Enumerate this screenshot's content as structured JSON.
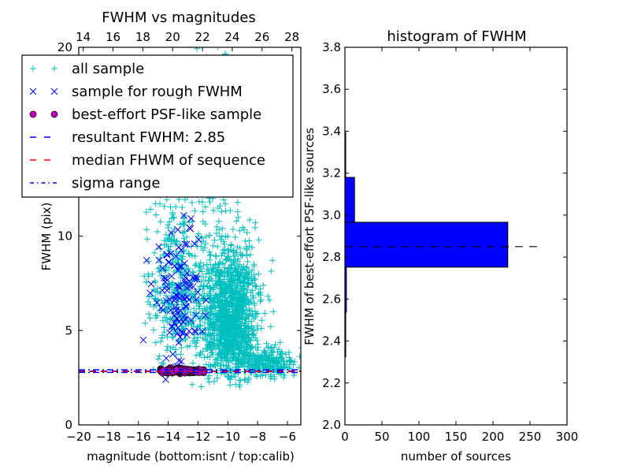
{
  "chart_data": [
    {
      "type": "scatter",
      "title": "FWHM vs magnitudes",
      "xlabel": "magnitude (bottom:isnt / top:calib)",
      "ylabel": "FWHM (pix)",
      "xlim": [
        -20,
        -5.1
      ],
      "ylim": [
        0,
        20
      ],
      "xticks": [
        -20,
        -18,
        -16,
        -14,
        -12,
        -10,
        -8,
        -6
      ],
      "xtick_labels": [
        "−20",
        "−18",
        "−16",
        "−14",
        "−12",
        "−10",
        "−8",
        "−6"
      ],
      "yticks": [
        0,
        5,
        10,
        20
      ],
      "ytick_labels": [
        "0",
        "5",
        "10",
        "20"
      ],
      "top_xticks": [
        14,
        16,
        18,
        20,
        22,
        24,
        26,
        28
      ],
      "top_xtick_labels": [
        "14",
        "16",
        "18",
        "20",
        "22",
        "24",
        "26",
        "28"
      ],
      "top_axis_offset": 33.7,
      "legend_location": "upper-left",
      "legend": [
        {
          "label": "all sample",
          "marker": "plus",
          "color": "#00bfbf"
        },
        {
          "label": "sample for rough FWHM",
          "marker": "x",
          "color": "#0000ff"
        },
        {
          "label": "best-effort PSF-like sample",
          "marker": "circle",
          "color": "#bf00bf"
        },
        {
          "label": "resultant FWHM: 2.85",
          "marker": "dashed",
          "color": "#0000ff"
        },
        {
          "label": "median FHWM of sequence",
          "marker": "dashed",
          "color": "#ff0000"
        },
        {
          "label": "sigma range",
          "marker": "dashdot",
          "color": "#0000ff"
        }
      ],
      "series": [
        {
          "name": "all sample",
          "color": "#00bfbf",
          "clusters": [
            {
              "count": 1300,
              "x_mean": -9.8,
              "x_sd": 0.9,
              "y_mean": 5.2,
              "y_sd": 2.2,
              "y_min": 2.0
            },
            {
              "count": 420,
              "x_mean": -13.3,
              "x_sd": 1.0,
              "y_mean": 6.5,
              "y_sd": 3.0,
              "y_min": 2.6
            },
            {
              "count": 260,
              "x_mean": -7.5,
              "x_sd": 1.2,
              "y_mean": 3.1,
              "y_sd": 0.5,
              "y_min": 2.3
            },
            {
              "count": 120,
              "x_mean": -11.5,
              "x_sd": 1.5,
              "y_mean": 14,
              "y_sd": 3.5,
              "y_min": 9
            }
          ]
        },
        {
          "name": "sample for rough FWHM",
          "color": "#0000ff",
          "clusters": [
            {
              "count": 110,
              "x_mean": -13.3,
              "x_sd": 0.8,
              "y_mean": 6.0,
              "y_sd": 2.4,
              "y_min": 2.4
            }
          ]
        },
        {
          "name": "best-effort PSF-like sample",
          "color": "#bf00bf",
          "clusters": [
            {
              "count": 230,
              "x_mean": -13.0,
              "x_sd": 0.8,
              "y_mean": 2.86,
              "y_sd": 0.05,
              "y_min": 2.7,
              "x_min": -14.5,
              "x_max": -11.6
            }
          ]
        }
      ],
      "hlines": [
        {
          "name": "resultant FWHM",
          "y": 2.85,
          "color": "#0000ff",
          "style": "dashed"
        },
        {
          "name": "median FHWM of sequence",
          "y": 2.83,
          "color": "#ff0000",
          "style": "dashed"
        },
        {
          "name": "sigma range low",
          "y": 2.78,
          "color": "#0000ff",
          "style": "dashdot"
        },
        {
          "name": "sigma range high",
          "y": 2.92,
          "color": "#0000ff",
          "style": "dashdot"
        }
      ]
    },
    {
      "type": "bar",
      "orientation": "horizontal",
      "title": "histogram of FWHM",
      "xlabel": "number of sources",
      "ylabel": "FWHM of best-effort PSF-like sources",
      "xlim": [
        0,
        300
      ],
      "ylim": [
        2.0,
        3.8
      ],
      "xticks": [
        0,
        50,
        100,
        150,
        200,
        250,
        300
      ],
      "xtick_labels": [
        "0",
        "50",
        "100",
        "150",
        "200",
        "250",
        "300"
      ],
      "yticks": [
        2.0,
        2.2,
        2.4,
        2.6,
        2.8,
        3.0,
        3.2,
        3.4,
        3.6,
        3.8
      ],
      "ytick_labels": [
        "2.0",
        "2.2",
        "2.4",
        "2.6",
        "2.8",
        "3.0",
        "3.2",
        "3.4",
        "3.6",
        "3.8"
      ],
      "bin_edges": [
        2.324,
        2.538,
        2.752,
        2.966,
        3.18,
        3.394
      ],
      "counts": [
        1,
        2,
        220,
        13,
        1
      ],
      "bar_color": "#0000ff",
      "reference_line": {
        "y": 2.85,
        "x_end": 260,
        "color": "#000000",
        "style": "dashed"
      }
    }
  ]
}
